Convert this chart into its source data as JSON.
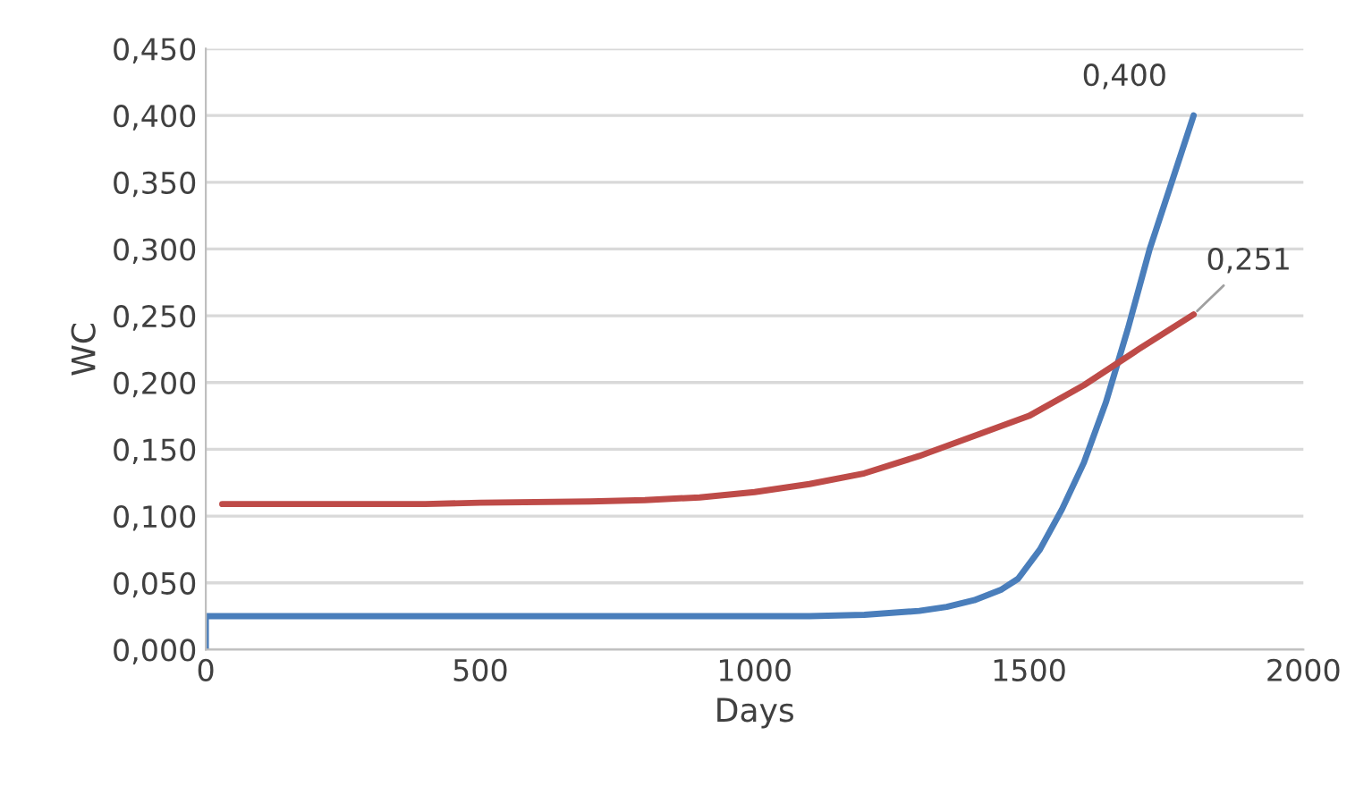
{
  "chart_data": {
    "type": "line",
    "xlabel": "Days",
    "ylabel": "WC",
    "series": [
      {
        "color": "#4a7ebb",
        "x": [
          0,
          0,
          200,
          400,
          600,
          800,
          1000,
          1100,
          1200,
          1300,
          1350,
          1400,
          1450,
          1480,
          1520,
          1560,
          1600,
          1640,
          1680,
          1720,
          1760,
          1800
        ],
        "values": [
          0,
          0.025,
          0.025,
          0.025,
          0.025,
          0.025,
          0.025,
          0.025,
          0.026,
          0.029,
          0.032,
          0.037,
          0.045,
          0.053,
          0.075,
          0.105,
          0.14,
          0.185,
          0.24,
          0.3,
          0.35,
          0.4
        ]
      },
      {
        "color": "#be4b48",
        "x": [
          30,
          200,
          400,
          500,
          700,
          800,
          900,
          1000,
          1100,
          1200,
          1300,
          1400,
          1500,
          1600,
          1700,
          1800
        ],
        "values": [
          0.109,
          0.109,
          0.109,
          0.11,
          0.111,
          0.112,
          0.114,
          0.118,
          0.124,
          0.132,
          0.145,
          0.16,
          0.175,
          0.198,
          0.225,
          0.251
        ]
      }
    ],
    "xlim": [
      0,
      2000
    ],
    "xticks": [
      0,
      500,
      1000,
      1500,
      2000
    ],
    "ylim": [
      0,
      0.45
    ],
    "yticks": [
      {
        "value": 0,
        "label": "0,000"
      },
      {
        "value": 0.05,
        "label": "0,050"
      },
      {
        "value": 0.1,
        "label": "0,100"
      },
      {
        "value": 0.15,
        "label": "0,150"
      },
      {
        "value": 0.2,
        "label": "0,200"
      },
      {
        "value": 0.25,
        "label": "0,250"
      },
      {
        "value": 0.3,
        "label": "0,300"
      },
      {
        "value": 0.35,
        "label": "0,350"
      },
      {
        "value": 0.4,
        "label": "0,400"
      },
      {
        "value": 0.45,
        "label": "0,450"
      }
    ],
    "annotations": [
      {
        "text": "0,400",
        "x": 1800,
        "y": 0.4
      },
      {
        "text": "0,251",
        "x": 1800,
        "y": 0.251
      }
    ],
    "grid": "y",
    "marker": "none",
    "line_style": "solid"
  }
}
